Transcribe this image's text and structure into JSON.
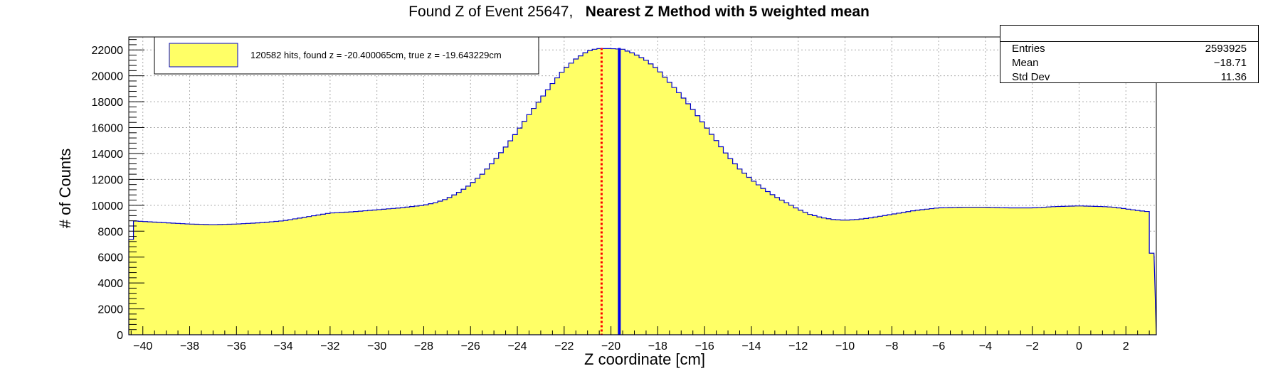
{
  "title": {
    "part1": "Found Z of Event 25647,",
    "part2": "Nearest Z Method with 5 weighted mean"
  },
  "stats": {
    "rows": [
      {
        "key": "Entries",
        "value": "2593925"
      },
      {
        "key": "Mean",
        "value": "−18.71"
      },
      {
        "key": "Std Dev",
        "value": "11.36"
      }
    ]
  },
  "legend": {
    "label": "120582 hits, found z = -20.400065cm, true z = -19.643229cm"
  },
  "colors": {
    "fill": "#ffff66",
    "outline": "#0000cc",
    "found_line": "#ff0000",
    "true_line": "#0000ee",
    "grid": "#aaaaaa"
  },
  "chart_data": {
    "type": "bar",
    "title": "Found Z of Event 25647,   Nearest Z Method with 5 weighted mean",
    "xlabel": "Z coordinate [cm]",
    "ylabel": "# of Counts",
    "xlim": [
      -40.6,
      3.3
    ],
    "ylim": [
      0,
      23000
    ],
    "xticks": [
      -40,
      -38,
      -36,
      -34,
      -32,
      -30,
      -28,
      -26,
      -24,
      -22,
      -20,
      -18,
      -16,
      -14,
      -12,
      -10,
      -8,
      -6,
      -4,
      -2,
      0,
      2
    ],
    "yticks": [
      0,
      2000,
      4000,
      6000,
      8000,
      10000,
      12000,
      14000,
      16000,
      18000,
      20000,
      22000
    ],
    "grid": true,
    "legend_position": "top-left",
    "histogram_anchor_points": [
      [
        -40.6,
        4500
      ],
      [
        -40.45,
        8800
      ],
      [
        -39.5,
        8700
      ],
      [
        -38,
        8550
      ],
      [
        -37,
        8500
      ],
      [
        -36,
        8550
      ],
      [
        -35,
        8650
      ],
      [
        -34,
        8800
      ],
      [
        -33,
        9100
      ],
      [
        -32,
        9400
      ],
      [
        -31,
        9500
      ],
      [
        -30,
        9650
      ],
      [
        -29,
        9800
      ],
      [
        -28,
        10000
      ],
      [
        -27.5,
        10200
      ],
      [
        -27,
        10500
      ],
      [
        -26.5,
        11000
      ],
      [
        -26,
        11600
      ],
      [
        -25.5,
        12400
      ],
      [
        -25,
        13400
      ],
      [
        -24.5,
        14500
      ],
      [
        -24,
        15700
      ],
      [
        -23.5,
        17000
      ],
      [
        -23,
        18200
      ],
      [
        -22.5,
        19400
      ],
      [
        -22,
        20500
      ],
      [
        -21.5,
        21300
      ],
      [
        -21,
        21900
      ],
      [
        -20.6,
        22100
      ],
      [
        -20,
        22100
      ],
      [
        -19.5,
        22050
      ],
      [
        -19,
        21700
      ],
      [
        -18.5,
        21200
      ],
      [
        -18,
        20500
      ],
      [
        -17.5,
        19500
      ],
      [
        -17,
        18500
      ],
      [
        -16.5,
        17400
      ],
      [
        -16,
        16200
      ],
      [
        -15.5,
        15000
      ],
      [
        -15,
        13800
      ],
      [
        -14.5,
        12800
      ],
      [
        -14,
        12000
      ],
      [
        -13.5,
        11300
      ],
      [
        -13,
        10700
      ],
      [
        -12.5,
        10200
      ],
      [
        -12,
        9700
      ],
      [
        -11.5,
        9300
      ],
      [
        -11,
        9050
      ],
      [
        -10.5,
        8900
      ],
      [
        -10,
        8850
      ],
      [
        -9.5,
        8900
      ],
      [
        -9,
        9000
      ],
      [
        -8.5,
        9150
      ],
      [
        -8,
        9300
      ],
      [
        -7.5,
        9450
      ],
      [
        -7,
        9600
      ],
      [
        -6.5,
        9700
      ],
      [
        -6,
        9800
      ],
      [
        -5,
        9850
      ],
      [
        -4,
        9850
      ],
      [
        -3,
        9800
      ],
      [
        -2,
        9800
      ],
      [
        -1,
        9900
      ],
      [
        0,
        9950
      ],
      [
        1,
        9900
      ],
      [
        1.5,
        9850
      ],
      [
        2.5,
        9600
      ],
      [
        3.0,
        9500
      ],
      [
        3.15,
        4700
      ],
      [
        3.3,
        4700
      ]
    ],
    "bin_width": 0.2,
    "vertical_lines": [
      {
        "x": -20.400065,
        "style": "dotted",
        "color": "#ff0000"
      },
      {
        "x": -19.643229,
        "style": "solid",
        "color": "#0000ee"
      }
    ]
  }
}
